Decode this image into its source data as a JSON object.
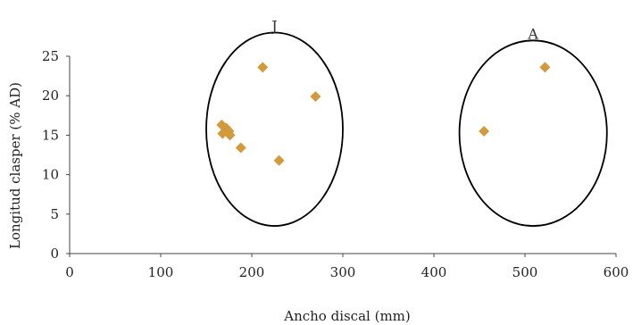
{
  "chart_data": {
    "type": "scatter",
    "xlabel": "Ancho discal (mm)",
    "ylabel": "Longitud clasper (% AD)",
    "xlim": [
      0,
      600
    ],
    "ylim": [
      0,
      25
    ],
    "x_ticks": [
      "0",
      "100",
      "200",
      "300",
      "400",
      "500",
      "600"
    ],
    "y_ticks": [
      "0",
      "5",
      "10",
      "15",
      "20",
      "25"
    ],
    "grid": false,
    "marker": "diamond",
    "marker_color": "#d29a3a",
    "series": [
      {
        "points": [
          {
            "x": 167,
            "y": 16.3
          },
          {
            "x": 168,
            "y": 15.2
          },
          {
            "x": 172,
            "y": 15.9
          },
          {
            "x": 175,
            "y": 15.5
          },
          {
            "x": 176,
            "y": 15.0
          },
          {
            "x": 188,
            "y": 13.4
          },
          {
            "x": 212,
            "y": 23.6
          },
          {
            "x": 230,
            "y": 11.8
          },
          {
            "x": 270,
            "y": 19.9
          },
          {
            "x": 455,
            "y": 15.5
          },
          {
            "x": 522,
            "y": 23.6
          }
        ]
      }
    ],
    "groups": [
      {
        "label": "J",
        "x_range": [
          150,
          300
        ],
        "y_range": [
          3.5,
          28
        ]
      },
      {
        "label": "A",
        "x_range": [
          428,
          590
        ],
        "y_range": [
          3.5,
          27
        ]
      }
    ]
  }
}
